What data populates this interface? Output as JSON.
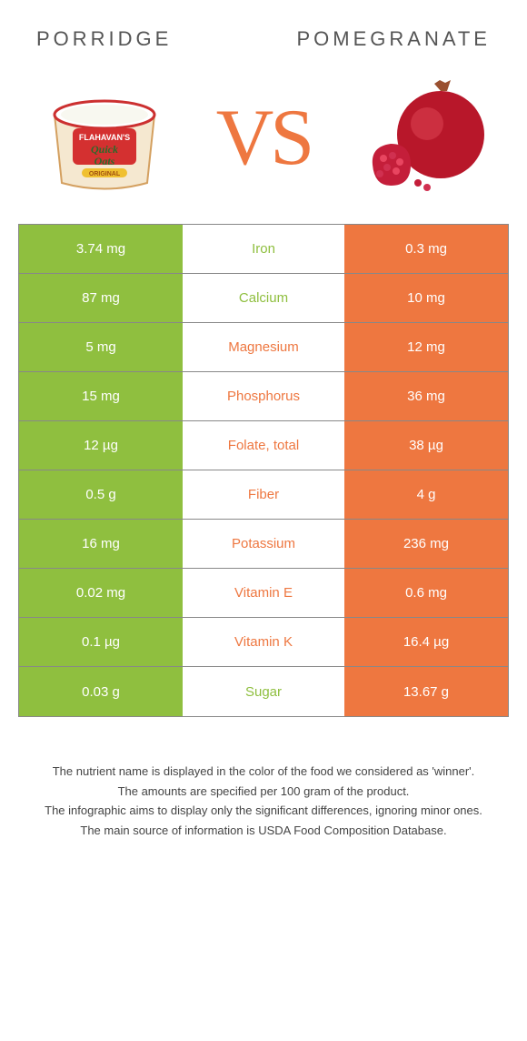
{
  "header": {
    "left": "PORRIDGE",
    "right": "POMEGRANATE"
  },
  "vs_label": "VS",
  "colors": {
    "left": "#8fbf3f",
    "right": "#ee7740",
    "mid_bg": "#ffffff",
    "border": "#888888"
  },
  "rows": [
    {
      "left": "3.74 mg",
      "mid": "Iron",
      "right": "0.3 mg",
      "winner": "left"
    },
    {
      "left": "87 mg",
      "mid": "Calcium",
      "right": "10 mg",
      "winner": "left"
    },
    {
      "left": "5 mg",
      "mid": "Magnesium",
      "right": "12 mg",
      "winner": "right"
    },
    {
      "left": "15 mg",
      "mid": "Phosphorus",
      "right": "36 mg",
      "winner": "right"
    },
    {
      "left": "12 µg",
      "mid": "Folate, total",
      "right": "38 µg",
      "winner": "right"
    },
    {
      "left": "0.5 g",
      "mid": "Fiber",
      "right": "4 g",
      "winner": "right"
    },
    {
      "left": "16 mg",
      "mid": "Potassium",
      "right": "236 mg",
      "winner": "right"
    },
    {
      "left": "0.02 mg",
      "mid": "Vitamin E",
      "right": "0.6 mg",
      "winner": "right"
    },
    {
      "left": "0.1 µg",
      "mid": "Vitamin K",
      "right": "16.4 µg",
      "winner": "right"
    },
    {
      "left": "0.03 g",
      "mid": "Sugar",
      "right": "13.67 g",
      "winner": "left"
    }
  ],
  "footer": [
    "The nutrient name is displayed in the color of the food we considered as 'winner'.",
    "The amounts are specified per 100 gram of the product.",
    "The infographic aims to display only the significant differences, ignoring minor ones.",
    "The main source of information is USDA Food Composition Database."
  ]
}
